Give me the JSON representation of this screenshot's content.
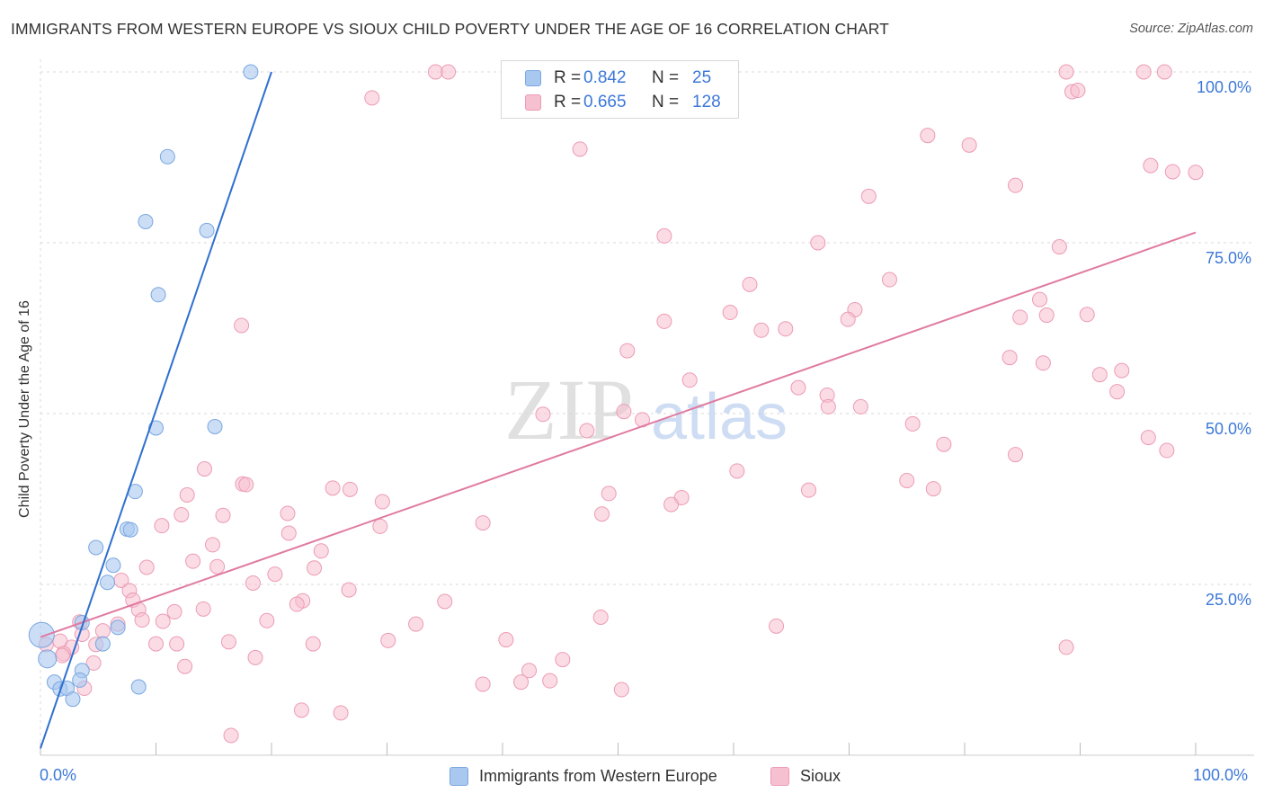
{
  "title": "IMMIGRANTS FROM WESTERN EUROPE VS SIOUX CHILD POVERTY UNDER THE AGE OF 16 CORRELATION CHART",
  "source": "Source: ZipAtlas.com",
  "watermark": {
    "zip": "ZIP",
    "atlas": "atlas"
  },
  "legend": {
    "series1": {
      "r_label": "R =",
      "r_value": "0.842",
      "n_label": "N =",
      "n_value": "25"
    },
    "series2": {
      "r_label": "R =",
      "r_value": "0.665",
      "n_label": "N =",
      "n_value": "128"
    }
  },
  "bottom_legend": {
    "series1": "Immigrants from Western Europe",
    "series2": "Sioux"
  },
  "x_axis": {
    "min_label": "0.0%",
    "max_label": "100.0%"
  },
  "colors": {
    "blue_fill": "#a9c8f0",
    "blue_stroke": "#7aa7e0",
    "blue_line": "#2f6fd0",
    "pink_fill": "#f7c0d0",
    "pink_stroke": "#ec9bb5",
    "pink_line": "#e07aa0",
    "axis_text": "#3c78d8",
    "grid": "#d9d9d9"
  },
  "chart_data": {
    "type": "scatter",
    "title": "IMMIGRANTS FROM WESTERN EUROPE VS SIOUX CHILD POVERTY UNDER THE AGE OF 16 CORRELATION CHART",
    "xlabel": "",
    "ylabel": "Child Poverty Under the Age of 16",
    "xlim": [
      0,
      100
    ],
    "ylim": [
      0,
      100
    ],
    "y_ticks": [
      25,
      50,
      75,
      100
    ],
    "y_tick_labels": [
      "25.0%",
      "50.0%",
      "75.0%",
      "100.0%"
    ],
    "grid": true,
    "legend_position": "top-center",
    "series": [
      {
        "name": "Immigrants from Western Europe",
        "color": "#a9c8f0",
        "R": 0.842,
        "N": 25,
        "trend": {
          "x0": 0.0,
          "y0": 1.0,
          "x1": 20.0,
          "y1": 100.0
        },
        "points": [
          [
            18.2,
            100.0
          ],
          [
            11.0,
            87.6
          ],
          [
            9.1,
            78.1
          ],
          [
            14.4,
            76.8
          ],
          [
            10.2,
            67.4
          ],
          [
            10.0,
            47.9
          ],
          [
            15.1,
            48.1
          ],
          [
            8.2,
            38.6
          ],
          [
            7.5,
            33.1
          ],
          [
            7.8,
            33.0
          ],
          [
            4.8,
            30.4
          ],
          [
            6.3,
            27.8
          ],
          [
            5.8,
            25.3
          ],
          [
            6.7,
            18.7
          ],
          [
            3.6,
            19.4
          ],
          [
            5.4,
            16.3
          ],
          [
            0.1,
            17.6
          ],
          [
            0.6,
            14.1
          ],
          [
            3.6,
            12.4
          ],
          [
            3.4,
            11.0
          ],
          [
            1.2,
            10.7
          ],
          [
            1.7,
            9.7
          ],
          [
            2.3,
            9.8
          ],
          [
            8.5,
            10.0
          ],
          [
            2.8,
            8.2
          ]
        ]
      },
      {
        "name": "Sioux",
        "color": "#f7c0d0",
        "R": 0.665,
        "N": 128,
        "trend": {
          "x0": 0.0,
          "y0": 17.3,
          "x1": 100.0,
          "y1": 76.5
        },
        "points": [
          [
            34.2,
            100.0
          ],
          [
            35.3,
            100.0
          ],
          [
            88.8,
            100.0
          ],
          [
            95.5,
            100.0
          ],
          [
            97.3,
            100.0
          ],
          [
            28.7,
            96.2
          ],
          [
            89.3,
            97.1
          ],
          [
            89.8,
            97.3
          ],
          [
            46.7,
            88.7
          ],
          [
            76.8,
            90.7
          ],
          [
            80.4,
            89.3
          ],
          [
            96.1,
            86.3
          ],
          [
            98.0,
            85.4
          ],
          [
            100.0,
            85.3
          ],
          [
            84.4,
            83.4
          ],
          [
            71.7,
            81.8
          ],
          [
            54.0,
            76.0
          ],
          [
            67.3,
            75.0
          ],
          [
            88.2,
            74.4
          ],
          [
            73.5,
            69.6
          ],
          [
            61.4,
            68.9
          ],
          [
            59.7,
            64.8
          ],
          [
            70.5,
            65.2
          ],
          [
            84.8,
            64.1
          ],
          [
            87.1,
            64.4
          ],
          [
            90.6,
            64.5
          ],
          [
            86.5,
            66.7
          ],
          [
            54.0,
            63.5
          ],
          [
            69.9,
            63.8
          ],
          [
            62.4,
            62.2
          ],
          [
            64.5,
            62.4
          ],
          [
            17.4,
            62.9
          ],
          [
            50.8,
            59.2
          ],
          [
            83.9,
            58.2
          ],
          [
            86.8,
            57.4
          ],
          [
            91.7,
            55.7
          ],
          [
            93.6,
            56.3
          ],
          [
            56.2,
            54.9
          ],
          [
            65.6,
            53.8
          ],
          [
            68.1,
            52.7
          ],
          [
            68.2,
            51.0
          ],
          [
            71.0,
            51.0
          ],
          [
            93.2,
            53.2
          ],
          [
            43.5,
            49.9
          ],
          [
            50.5,
            50.3
          ],
          [
            52.1,
            49.1
          ],
          [
            47.3,
            47.5
          ],
          [
            75.5,
            48.5
          ],
          [
            78.2,
            45.5
          ],
          [
            95.9,
            46.5
          ],
          [
            97.5,
            44.6
          ],
          [
            84.4,
            44.0
          ],
          [
            60.3,
            41.6
          ],
          [
            14.2,
            41.9
          ],
          [
            75.0,
            40.2
          ],
          [
            17.5,
            39.7
          ],
          [
            17.8,
            39.6
          ],
          [
            25.3,
            39.1
          ],
          [
            26.8,
            38.9
          ],
          [
            49.2,
            38.3
          ],
          [
            55.5,
            37.7
          ],
          [
            54.6,
            36.7
          ],
          [
            66.5,
            38.8
          ],
          [
            77.3,
            39.0
          ],
          [
            29.6,
            37.1
          ],
          [
            12.7,
            38.1
          ],
          [
            12.2,
            35.2
          ],
          [
            15.8,
            35.1
          ],
          [
            21.4,
            35.4
          ],
          [
            38.3,
            34.0
          ],
          [
            29.4,
            33.5
          ],
          [
            10.5,
            33.6
          ],
          [
            21.5,
            32.5
          ],
          [
            48.6,
            35.3
          ],
          [
            14.9,
            30.8
          ],
          [
            24.3,
            29.9
          ],
          [
            13.2,
            28.4
          ],
          [
            15.3,
            27.6
          ],
          [
            23.7,
            27.4
          ],
          [
            9.2,
            27.5
          ],
          [
            20.3,
            26.5
          ],
          [
            7.0,
            25.6
          ],
          [
            7.7,
            24.1
          ],
          [
            18.4,
            25.2
          ],
          [
            26.7,
            24.2
          ],
          [
            22.7,
            22.6
          ],
          [
            22.2,
            22.1
          ],
          [
            35.0,
            22.5
          ],
          [
            8.0,
            22.7
          ],
          [
            8.5,
            21.3
          ],
          [
            11.6,
            21.0
          ],
          [
            14.1,
            21.4
          ],
          [
            8.8,
            19.8
          ],
          [
            10.6,
            19.6
          ],
          [
            19.6,
            19.7
          ],
          [
            32.5,
            19.2
          ],
          [
            48.5,
            20.2
          ],
          [
            63.7,
            18.9
          ],
          [
            3.4,
            19.5
          ],
          [
            5.4,
            18.2
          ],
          [
            6.7,
            19.2
          ],
          [
            3.6,
            17.7
          ],
          [
            1.7,
            16.7
          ],
          [
            2.7,
            15.8
          ],
          [
            0.5,
            16.2
          ],
          [
            2.0,
            14.9
          ],
          [
            10.0,
            16.3
          ],
          [
            11.8,
            16.3
          ],
          [
            4.8,
            16.2
          ],
          [
            16.3,
            16.6
          ],
          [
            23.6,
            16.3
          ],
          [
            30.1,
            16.8
          ],
          [
            40.3,
            16.9
          ],
          [
            88.8,
            15.8
          ],
          [
            1.9,
            14.6
          ],
          [
            4.6,
            13.5
          ],
          [
            18.6,
            14.3
          ],
          [
            42.3,
            12.4
          ],
          [
            41.6,
            10.7
          ],
          [
            44.1,
            10.9
          ],
          [
            45.2,
            14.0
          ],
          [
            38.3,
            10.4
          ],
          [
            50.3,
            9.6
          ],
          [
            12.5,
            13.0
          ],
          [
            3.8,
            9.8
          ],
          [
            22.6,
            6.6
          ],
          [
            26.0,
            6.2
          ],
          [
            16.5,
            2.9
          ]
        ]
      }
    ]
  }
}
